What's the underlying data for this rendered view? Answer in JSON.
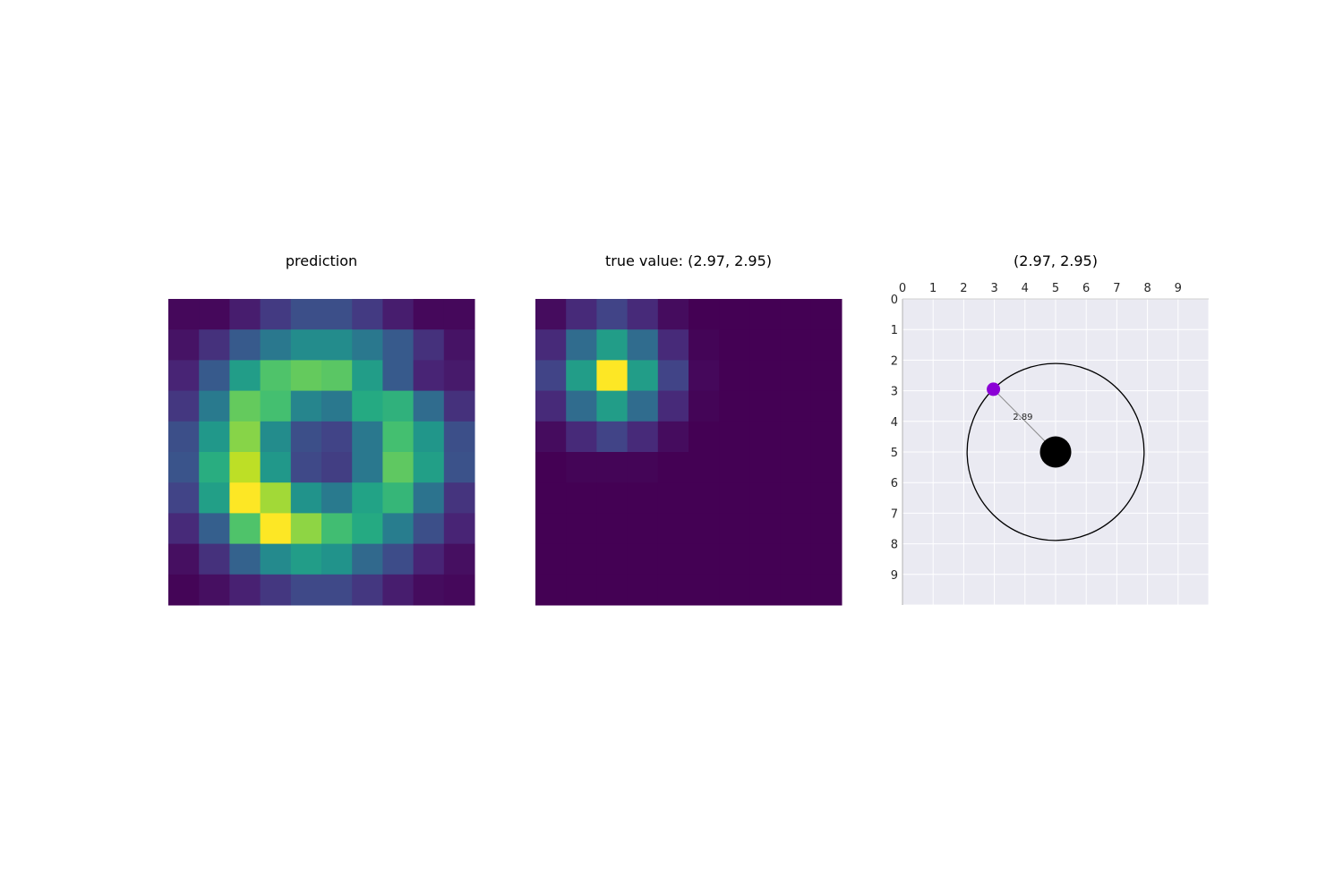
{
  "chart_data": [
    {
      "type": "heatmap",
      "title": "prediction",
      "colormap": "viridis",
      "values": [
        [
          0.02,
          0.02,
          0.08,
          0.17,
          0.24,
          0.24,
          0.17,
          0.08,
          0.02,
          0.02
        ],
        [
          0.05,
          0.14,
          0.28,
          0.4,
          0.48,
          0.48,
          0.4,
          0.28,
          0.14,
          0.05
        ],
        [
          0.1,
          0.28,
          0.55,
          0.72,
          0.76,
          0.74,
          0.55,
          0.28,
          0.1,
          0.07
        ],
        [
          0.16,
          0.41,
          0.76,
          0.7,
          0.45,
          0.4,
          0.61,
          0.64,
          0.35,
          0.14
        ],
        [
          0.24,
          0.53,
          0.82,
          0.48,
          0.24,
          0.2,
          0.4,
          0.7,
          0.52,
          0.24
        ],
        [
          0.26,
          0.62,
          0.9,
          0.53,
          0.22,
          0.18,
          0.4,
          0.75,
          0.56,
          0.25
        ],
        [
          0.2,
          0.56,
          1.0,
          0.86,
          0.51,
          0.41,
          0.58,
          0.66,
          0.38,
          0.15
        ],
        [
          0.12,
          0.3,
          0.72,
          1.0,
          0.83,
          0.69,
          0.61,
          0.42,
          0.24,
          0.1
        ],
        [
          0.04,
          0.14,
          0.31,
          0.47,
          0.55,
          0.51,
          0.34,
          0.23,
          0.1,
          0.04
        ],
        [
          0.01,
          0.04,
          0.09,
          0.16,
          0.22,
          0.22,
          0.16,
          0.08,
          0.03,
          0.02
        ]
      ]
    },
    {
      "type": "heatmap",
      "title": "true value: (2.97, 2.95)",
      "colormap": "viridis",
      "values": [
        [
          0.03,
          0.12,
          0.2,
          0.12,
          0.03,
          0.0,
          0.0,
          0.0,
          0.0,
          0.0
        ],
        [
          0.12,
          0.35,
          0.55,
          0.35,
          0.12,
          0.01,
          0.0,
          0.0,
          0.0,
          0.0
        ],
        [
          0.2,
          0.55,
          1.0,
          0.55,
          0.2,
          0.02,
          0.0,
          0.0,
          0.0,
          0.0
        ],
        [
          0.12,
          0.35,
          0.55,
          0.35,
          0.12,
          0.01,
          0.0,
          0.0,
          0.0,
          0.0
        ],
        [
          0.03,
          0.12,
          0.2,
          0.12,
          0.03,
          0.0,
          0.0,
          0.0,
          0.0,
          0.0
        ],
        [
          0.0,
          0.01,
          0.01,
          0.01,
          0.0,
          0.0,
          0.0,
          0.0,
          0.0,
          0.0
        ],
        [
          0.0,
          0.0,
          0.0,
          0.0,
          0.0,
          0.0,
          0.0,
          0.0,
          0.0,
          0.0
        ],
        [
          0.0,
          0.0,
          0.0,
          0.0,
          0.0,
          0.0,
          0.0,
          0.0,
          0.0,
          0.0
        ],
        [
          0.0,
          0.0,
          0.0,
          0.0,
          0.0,
          0.0,
          0.0,
          0.0,
          0.0,
          0.0
        ],
        [
          0.0,
          0.0,
          0.0,
          0.0,
          0.0,
          0.0,
          0.0,
          0.0,
          0.0,
          0.0
        ]
      ]
    },
    {
      "type": "scatter",
      "title": "(2.97, 2.95)",
      "xlim": [
        0,
        10
      ],
      "ylim": [
        10,
        0
      ],
      "xticks": [
        "0",
        "1",
        "2",
        "3",
        "4",
        "5",
        "6",
        "7",
        "8",
        "9"
      ],
      "yticks": [
        "0",
        "1",
        "2",
        "3",
        "4",
        "5",
        "6",
        "7",
        "8",
        "9"
      ],
      "x_axis_position": "top",
      "grid": true,
      "background": "#eaeaf2",
      "center": {
        "x": 5,
        "y": 5,
        "color": "#000000"
      },
      "circle_radius": 2.89,
      "point": {
        "x": 2.97,
        "y": 2.95,
        "color": "#8b00d6"
      },
      "distance_label": "2.89"
    }
  ]
}
